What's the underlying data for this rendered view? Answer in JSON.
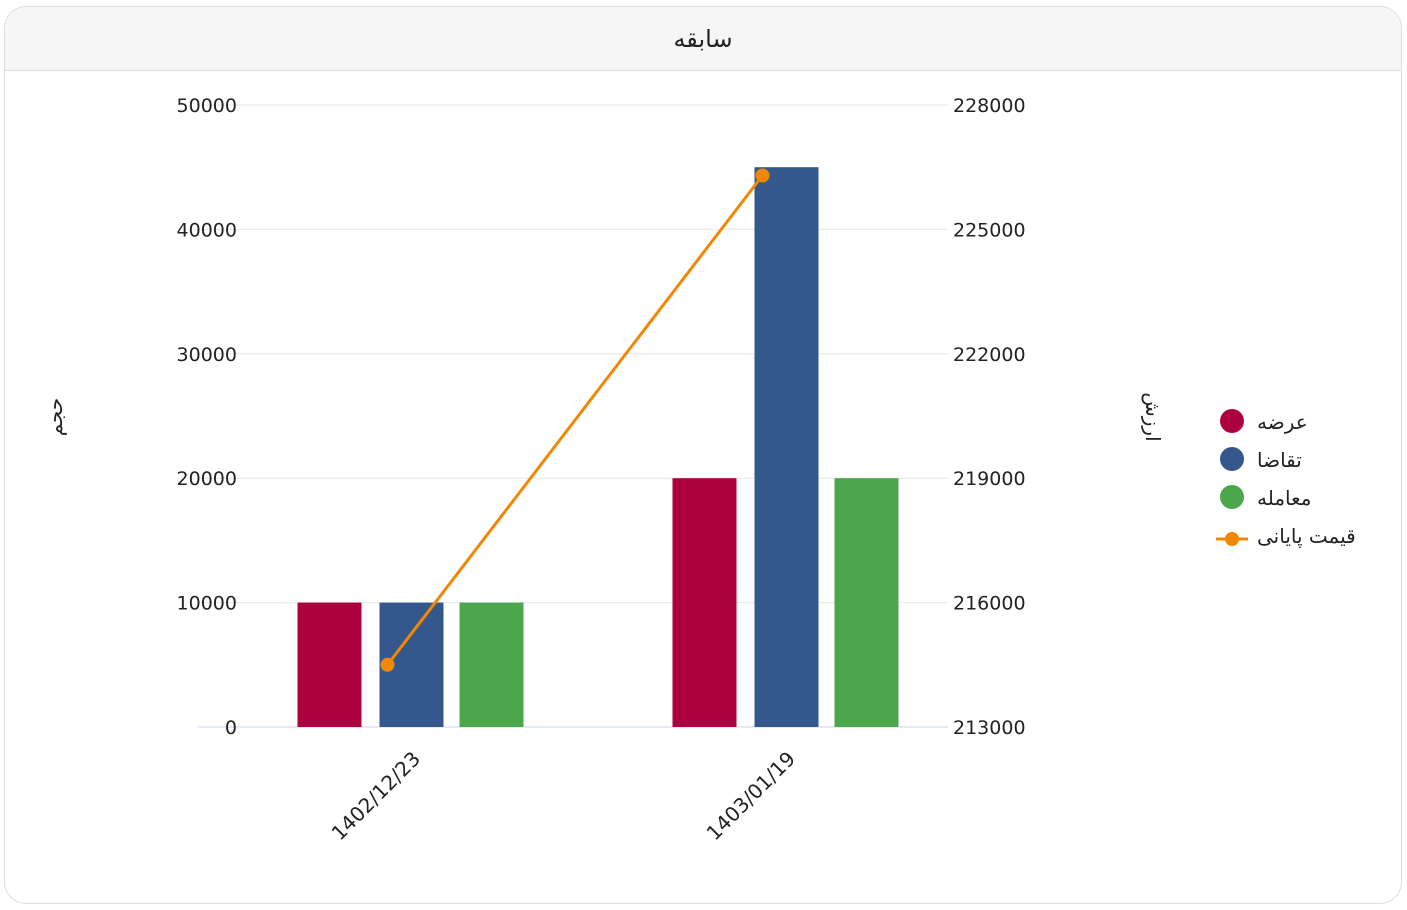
{
  "card": {
    "title": "سابقه"
  },
  "chart_data": {
    "type": "bar",
    "categories": [
      "1402/12/23",
      "1403/01/19"
    ],
    "series": [
      {
        "name": "عرضه",
        "type": "bar",
        "axis": "left",
        "color": "#ad003f",
        "values": [
          10000,
          20000
        ]
      },
      {
        "name": "تقاضا",
        "type": "bar",
        "axis": "left",
        "color": "#34578c",
        "values": [
          10000,
          45000
        ]
      },
      {
        "name": "معامله",
        "type": "bar",
        "axis": "left",
        "color": "#4ca64c",
        "values": [
          10000,
          20000
        ]
      },
      {
        "name": "قیمت پایانی",
        "type": "line",
        "axis": "right",
        "color": "#f28705",
        "values": [
          214500,
          226300
        ]
      }
    ],
    "ylabel": "حجم",
    "y2label": "ارزش",
    "ylim": [
      0,
      50000
    ],
    "yticks": [
      0,
      10000,
      20000,
      30000,
      40000,
      50000
    ],
    "y2lim": [
      213000,
      228000
    ],
    "y2ticks": [
      213000,
      216000,
      219000,
      222000,
      225000,
      228000
    ],
    "grid": true,
    "legend": "right"
  }
}
